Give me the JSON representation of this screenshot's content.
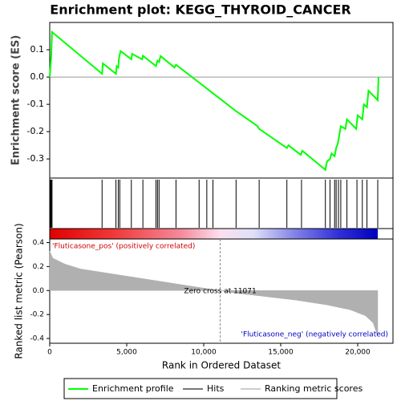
{
  "chart_data": {
    "type": "line",
    "title": "Enrichment plot: KEGG_THYROID_CANCER",
    "ylabel": "Enrichment score (ES)",
    "xlabel": "Rank in Ordered Dataset",
    "xlim": [
      0,
      22290
    ],
    "xticks": [
      0,
      {
        "value": 5000,
        "label": "5,000"
      },
      {
        "value": 10000,
        "label": "10,000"
      },
      {
        "value": 15000,
        "label": "15,000"
      },
      {
        "value": 20000,
        "label": "20,000"
      }
    ],
    "ylim": [
      -0.37,
      0.2
    ],
    "yticks": [
      -0.3,
      -0.2,
      -0.1,
      {
        "value": 0,
        "label": "0.0"
      },
      0.1
    ],
    "series": [
      {
        "name": "Enrichment profile",
        "color": "#00ff00",
        "x": [
          0,
          100,
          150,
          3400,
          3450,
          4300,
          4350,
          4450,
          4500,
          4600,
          5300,
          5350,
          6000,
          6050,
          6900,
          7000,
          7100,
          7200,
          8100,
          8200,
          9700,
          12100,
          13500,
          13600,
          15400,
          15500,
          16300,
          16400,
          17900,
          18000,
          18200,
          18300,
          18500,
          18600,
          18700,
          18800,
          18900,
          19200,
          19300,
          19900,
          20000,
          20300,
          20400,
          20600,
          20700,
          21300,
          21350
        ],
        "values": [
          0,
          0.08,
          0.165,
          0.012,
          0.05,
          0.012,
          0.04,
          0.035,
          0.07,
          0.095,
          0.065,
          0.085,
          0.065,
          0.078,
          0.04,
          0.06,
          0.055,
          0.077,
          0.035,
          0.045,
          -0.02,
          -0.125,
          -0.18,
          -0.19,
          -0.26,
          -0.25,
          -0.285,
          -0.27,
          -0.34,
          -0.31,
          -0.3,
          -0.28,
          -0.29,
          -0.26,
          -0.245,
          -0.215,
          -0.18,
          -0.19,
          -0.155,
          -0.19,
          -0.14,
          -0.155,
          -0.1,
          -0.11,
          -0.05,
          -0.085,
          0
        ]
      }
    ],
    "hits": {
      "name": "Hits",
      "color": "#000000",
      "x": [
        50,
        100,
        150,
        3400,
        4300,
        4450,
        4550,
        5300,
        6050,
        6900,
        7000,
        7100,
        8200,
        9700,
        10200,
        10600,
        12100,
        13600,
        15400,
        16350,
        17900,
        18200,
        18500,
        18600,
        18750,
        18900,
        19300,
        19950,
        20300,
        20600,
        21300
      ]
    },
    "metric": {
      "name": "Ranking metric scores",
      "color": "#b0b0b0",
      "ylabel": "Ranked list metric (Pearson)",
      "ylim": [
        -0.44,
        0.43
      ],
      "yticks": [
        -0.4,
        -0.2,
        {
          "value": 0,
          "label": "0.0"
        },
        0.2,
        0.4
      ],
      "x": [
        0,
        200,
        1000,
        2000,
        4000,
        6000,
        8000,
        10000,
        11071,
        12000,
        14000,
        16000,
        18000,
        19500,
        20500,
        21000,
        21300
      ],
      "values": [
        0.33,
        0.27,
        0.22,
        0.18,
        0.14,
        0.1,
        0.06,
        0.02,
        0,
        -0.02,
        -0.05,
        -0.08,
        -0.12,
        -0.16,
        -0.21,
        -0.27,
        -0.38
      ]
    },
    "zero_cross": 11071,
    "annotations": [
      "'Fluticasone_pos' (positively correlated)",
      "Zero cross at 11071",
      "'Fluticasone_neg' (negatively correlated)"
    ]
  }
}
